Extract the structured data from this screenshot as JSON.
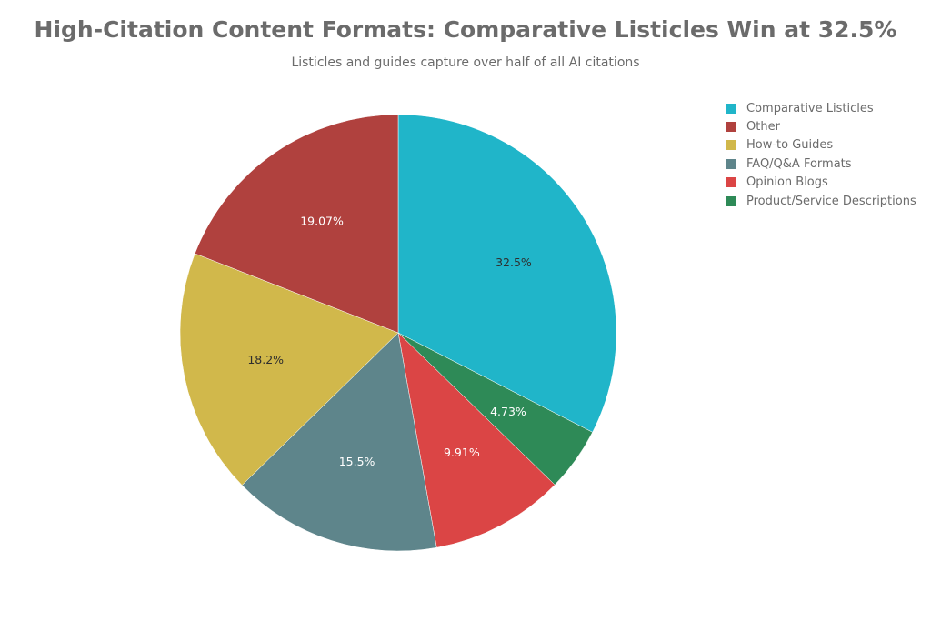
{
  "chart_data": {
    "type": "pie",
    "title": "High-Citation Content Formats: Comparative Listicles Win at 32.5%",
    "subtitle": "Listicles and guides capture over half of all AI citations",
    "legend_position": "top-right",
    "slices": [
      {
        "label": "Comparative Listicles",
        "value": 32.5,
        "display": "32.5%",
        "color": "#20b5c9",
        "text_color": "#2e2e2e"
      },
      {
        "label": "Other",
        "value": 19.07,
        "display": "19.07%",
        "color": "#b0413e",
        "text_color": "#ffffff"
      },
      {
        "label": "How-to Guides",
        "value": 18.2,
        "display": "18.2%",
        "color": "#d1b84b",
        "text_color": "#2e2e2e"
      },
      {
        "label": "FAQ/Q&A Formats",
        "value": 15.5,
        "display": "15.5%",
        "color": "#5e858b",
        "text_color": "#ffffff"
      },
      {
        "label": "Opinion Blogs",
        "value": 9.91,
        "display": "9.91%",
        "color": "#db4545",
        "text_color": "#ffffff"
      },
      {
        "label": "Product/Service Descriptions",
        "value": 4.73,
        "display": "4.73%",
        "color": "#2e8a57",
        "text_color": "#ffffff"
      }
    ],
    "draw_order": [
      0,
      5,
      4,
      3,
      2,
      1
    ]
  }
}
